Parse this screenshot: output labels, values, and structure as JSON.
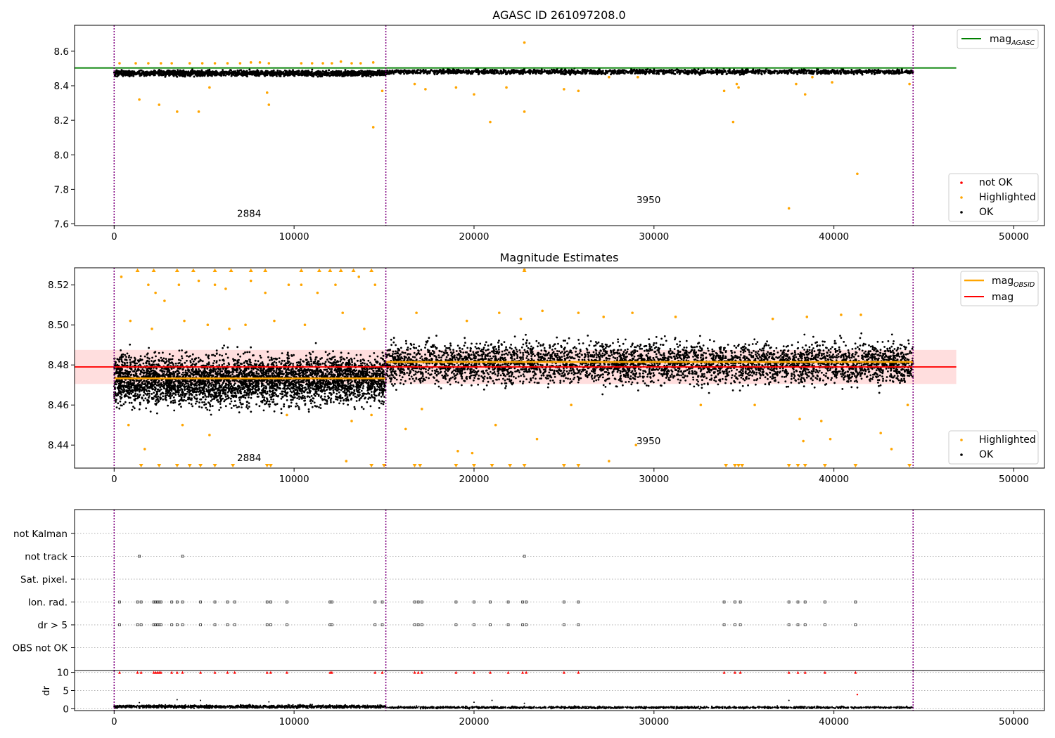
{
  "colors": {
    "ok": "#000000",
    "highlighted": "#ffa500",
    "not_ok": "#ff0000",
    "agasc_line": "#008000",
    "mag_obsid": "#ffa500",
    "mag": "#ff0000",
    "obsid_boundary": "#800080",
    "grid": "#b0b0b0"
  },
  "chart_data": [
    {
      "type": "scatter",
      "title": "AGASC ID 261097208.0",
      "xlim": [
        -2200,
        51700
      ],
      "ylim": [
        7.59,
        8.75
      ],
      "xticks": [
        0,
        10000,
        20000,
        30000,
        40000,
        50000
      ],
      "yticks": [
        7.6,
        7.8,
        8.0,
        8.2,
        8.4,
        8.6
      ],
      "ytick_labels": [
        "7.6",
        "7.8",
        "8.0",
        "8.2",
        "8.4",
        "8.6"
      ],
      "obsid_boundaries": [
        0,
        15100,
        44400
      ],
      "obsid_labels": [
        {
          "text": "2884",
          "x": 7500,
          "y": 7.64
        },
        {
          "text": "3950",
          "x": 29700,
          "y": 7.72
        }
      ],
      "series": [
        {
          "name": "mag",
          "sub": "AGASC",
          "kind": "hline",
          "y": 8.503,
          "x_range": [
            -2200,
            46800
          ],
          "color": "#008000"
        },
        {
          "name": "OK",
          "kind": "band",
          "segments": [
            {
              "x0": 0,
              "x1": 15100,
              "center": 8.472,
              "spread": 0.014
            },
            {
              "x0": 15100,
              "x1": 44400,
              "center": 8.481,
              "spread": 0.012
            }
          ]
        },
        {
          "name": "Highlighted",
          "kind": "points",
          "points": [
            [
              300,
              8.53
            ],
            [
              1200,
              8.53
            ],
            [
              1900,
              8.53
            ],
            [
              2600,
              8.53
            ],
            [
              3200,
              8.53
            ],
            [
              4200,
              8.53
            ],
            [
              4900,
              8.53
            ],
            [
              5600,
              8.53
            ],
            [
              6300,
              8.53
            ],
            [
              7000,
              8.53
            ],
            [
              7600,
              8.535
            ],
            [
              8100,
              8.535
            ],
            [
              8600,
              8.53
            ],
            [
              10400,
              8.53
            ],
            [
              11000,
              8.53
            ],
            [
              11600,
              8.53
            ],
            [
              12100,
              8.53
            ],
            [
              12600,
              8.54
            ],
            [
              13200,
              8.53
            ],
            [
              13700,
              8.53
            ],
            [
              14400,
              8.535
            ],
            [
              1400,
              8.32
            ],
            [
              2500,
              8.29
            ],
            [
              3500,
              8.25
            ],
            [
              4700,
              8.25
            ],
            [
              8600,
              8.29
            ],
            [
              8500,
              8.36
            ],
            [
              5300,
              8.39
            ],
            [
              14400,
              8.16
            ],
            [
              14900,
              8.37
            ],
            [
              22800,
              8.65
            ],
            [
              22800,
              8.25
            ],
            [
              20900,
              8.19
            ],
            [
              20000,
              8.35
            ],
            [
              19000,
              8.39
            ],
            [
              21800,
              8.39
            ],
            [
              25000,
              8.38
            ],
            [
              25800,
              8.37
            ],
            [
              17300,
              8.38
            ],
            [
              16700,
              8.41
            ],
            [
              29100,
              8.45
            ],
            [
              33900,
              8.37
            ],
            [
              34400,
              8.19
            ],
            [
              34700,
              8.39
            ],
            [
              34600,
              8.41
            ],
            [
              37500,
              7.69
            ],
            [
              41300,
              7.89
            ],
            [
              38400,
              8.35
            ],
            [
              37900,
              8.41
            ],
            [
              39900,
              8.42
            ],
            [
              38800,
              8.45
            ],
            [
              44200,
              8.41
            ],
            [
              27500,
              8.45
            ]
          ]
        }
      ],
      "legends": [
        {
          "position": "upper-right",
          "entries": [
            {
              "label": "mag",
              "sub": "AGASC",
              "kind": "line",
              "color": "#008000"
            }
          ]
        },
        {
          "position": "lower-right",
          "entries": [
            {
              "label": "not OK",
              "kind": "marker",
              "color": "#ff0000"
            },
            {
              "label": "Highlighted",
              "kind": "marker",
              "color": "#ffa500"
            },
            {
              "label": "OK",
              "kind": "marker",
              "color": "#000000"
            }
          ]
        }
      ]
    },
    {
      "type": "scatter",
      "title": "Magnitude Estimates",
      "xlim": [
        -2200,
        51700
      ],
      "ylim": [
        8.4285,
        8.5285
      ],
      "xticks": [
        0,
        10000,
        20000,
        30000,
        40000,
        50000
      ],
      "yticks": [
        8.44,
        8.46,
        8.48,
        8.5,
        8.52
      ],
      "ytick_labels": [
        "8.44",
        "8.46",
        "8.48",
        "8.50",
        "8.52"
      ],
      "obsid_boundaries": [
        0,
        15100,
        44400
      ],
      "obsid_labels": [
        {
          "text": "2884",
          "x": 7500,
          "y": 8.432
        },
        {
          "text": "3950",
          "x": 29700,
          "y": 8.4405
        }
      ],
      "mag_band": {
        "center": 8.479,
        "err": 0.0085,
        "x_range": [
          -2200,
          46800
        ]
      },
      "series": [
        {
          "name": "mag",
          "sub": "OBSID",
          "kind": "step",
          "segments": [
            {
              "x0": 0,
              "x1": 15100,
              "y": 8.4733
            },
            {
              "x0": 15100,
              "x1": 44400,
              "y": 8.4815
            }
          ],
          "color": "#ffa500"
        },
        {
          "name": "mag",
          "kind": "hline",
          "y": 8.479,
          "x_range": [
            -2200,
            46800
          ],
          "color": "#ff0000"
        },
        {
          "name": "OK",
          "kind": "band",
          "segments": [
            {
              "x0": 0,
              "x1": 15100,
              "center": 8.4725,
              "spread": 0.011
            },
            {
              "x0": 15100,
              "x1": 44400,
              "center": 8.481,
              "spread": 0.009
            }
          ]
        },
        {
          "name": "Highlighted",
          "kind": "points",
          "points": [
            [
              400,
              8.524
            ],
            [
              1900,
              8.52
            ],
            [
              2300,
              8.516
            ],
            [
              2800,
              8.512
            ],
            [
              3600,
              8.52
            ],
            [
              4700,
              8.522
            ],
            [
              5600,
              8.52
            ],
            [
              6200,
              8.518
            ],
            [
              7600,
              8.522
            ],
            [
              8400,
              8.516
            ],
            [
              9700,
              8.52
            ],
            [
              10400,
              8.52
            ],
            [
              11300,
              8.516
            ],
            [
              12300,
              8.52
            ],
            [
              13600,
              8.524
            ],
            [
              14500,
              8.52
            ],
            [
              900,
              8.502
            ],
            [
              2100,
              8.498
            ],
            [
              3900,
              8.502
            ],
            [
              5200,
              8.5
            ],
            [
              6400,
              8.498
            ],
            [
              7300,
              8.5
            ],
            [
              8900,
              8.502
            ],
            [
              10600,
              8.5
            ],
            [
              12700,
              8.506
            ],
            [
              13900,
              8.498
            ],
            [
              800,
              8.45
            ],
            [
              1700,
              8.438
            ],
            [
              3800,
              8.45
            ],
            [
              5300,
              8.445
            ],
            [
              9600,
              8.455
            ],
            [
              12900,
              8.432
            ],
            [
              13200,
              8.452
            ],
            [
              14300,
              8.455
            ],
            [
              16200,
              8.448
            ],
            [
              17100,
              8.458
            ],
            [
              19100,
              8.437
            ],
            [
              19900,
              8.436
            ],
            [
              21200,
              8.45
            ],
            [
              23500,
              8.443
            ],
            [
              25400,
              8.46
            ],
            [
              27500,
              8.432
            ],
            [
              29000,
              8.44
            ],
            [
              32600,
              8.46
            ],
            [
              35600,
              8.46
            ],
            [
              38100,
              8.453
            ],
            [
              38300,
              8.442
            ],
            [
              39300,
              8.452
            ],
            [
              39800,
              8.443
            ],
            [
              42600,
              8.446
            ],
            [
              43200,
              8.438
            ],
            [
              44100,
              8.46
            ],
            [
              16800,
              8.506
            ],
            [
              19600,
              8.502
            ],
            [
              21400,
              8.506
            ],
            [
              22600,
              8.503
            ],
            [
              23800,
              8.507
            ],
            [
              25800,
              8.506
            ],
            [
              27200,
              8.504
            ],
            [
              28800,
              8.506
            ],
            [
              31200,
              8.504
            ],
            [
              36600,
              8.503
            ],
            [
              38500,
              8.504
            ],
            [
              40400,
              8.505
            ],
            [
              41500,
              8.505
            ],
            [
              22800,
              8.5275
            ]
          ]
        },
        {
          "name": "Highlighted (out of range)",
          "kind": "markers-bottom",
          "x": [
            1500,
            2500,
            3500,
            4200,
            4800,
            5600,
            6600,
            8500,
            8700,
            14300,
            15000,
            16700,
            17000,
            19000,
            20000,
            21000,
            22000,
            22800,
            25000,
            25800,
            34000,
            34500,
            34700,
            34900,
            37500,
            38000,
            38400,
            39500,
            41200,
            44200
          ]
        },
        {
          "name": "Highlighted (above range)",
          "kind": "markers-top",
          "x": [
            1300,
            2200,
            3500,
            4400,
            5600,
            6500,
            7600,
            8400,
            10400,
            11400,
            12000,
            12600,
            13300,
            14300,
            22800
          ]
        }
      ],
      "legends": [
        {
          "position": "upper-right",
          "entries": [
            {
              "label": "mag",
              "sub": "OBSID",
              "kind": "line",
              "color": "#ffa500"
            },
            {
              "label": "mag",
              "kind": "line",
              "color": "#ff0000"
            }
          ]
        },
        {
          "position": "lower-right",
          "entries": [
            {
              "label": "Highlighted",
              "kind": "marker",
              "color": "#ffa500"
            },
            {
              "label": "OK",
              "kind": "marker",
              "color": "#000000"
            }
          ]
        }
      ]
    },
    {
      "type": "scatter",
      "title": "",
      "xlim": [
        -2200,
        51700
      ],
      "categories": [
        "not Kalman",
        "not track",
        "Sat. pixel.",
        "Ion. rad.",
        "dr > 5",
        "OBS not OK"
      ],
      "obsid_boundaries": [
        0,
        15100,
        44400
      ],
      "flag_points": {
        "not track": [
          1400,
          3800,
          22800
        ],
        "Ion. rad.": [
          300,
          1300,
          1500,
          2200,
          2300,
          2400,
          2500,
          2600,
          3200,
          3500,
          3800,
          4800,
          5600,
          6300,
          6700,
          8500,
          8700,
          9600,
          12000,
          12100,
          14500,
          14900,
          16700,
          16900,
          17100,
          19000,
          20000,
          20900,
          21900,
          22700,
          22900,
          25000,
          25800,
          33900,
          34500,
          34800,
          37500,
          38000,
          38400,
          39500,
          41200
        ],
        "dr > 5": [
          300,
          1300,
          1500,
          2200,
          2300,
          2400,
          2500,
          2600,
          3200,
          3500,
          3800,
          4800,
          5600,
          6300,
          6700,
          8500,
          8700,
          9600,
          12000,
          12100,
          14500,
          14900,
          16700,
          16900,
          17100,
          19000,
          20000,
          20900,
          21900,
          22700,
          22900,
          25000,
          25800,
          33900,
          34500,
          34800,
          37500,
          38000,
          38400,
          39500,
          41200
        ]
      }
    },
    {
      "type": "scatter",
      "title": "",
      "ylabel": "dr",
      "xlim": [
        -2200,
        51700
      ],
      "ylim": [
        -0.5,
        10.5
      ],
      "xticks": [
        0,
        10000,
        20000,
        30000,
        40000,
        50000
      ],
      "yticks": [
        0,
        5,
        10
      ],
      "ytick_labels": [
        "0",
        "5",
        "10"
      ],
      "obsid_boundaries": [
        0,
        15100,
        44400
      ],
      "series": [
        {
          "name": "OK",
          "kind": "band",
          "segments": [
            {
              "x0": 0,
              "x1": 15100,
              "center": 0.6,
              "spread": 0.35
            },
            {
              "x0": 15100,
              "x1": 44400,
              "center": 0.35,
              "spread": 0.25
            }
          ]
        },
        {
          "name": "OK (outliers)",
          "kind": "points",
          "points": [
            [
              1400,
              1.7
            ],
            [
              3500,
              2.5
            ],
            [
              4800,
              2.3
            ],
            [
              8600,
              1.9
            ],
            [
              20000,
              1.8
            ],
            [
              21000,
              2.3
            ],
            [
              22800,
              1.5
            ],
            [
              37500,
              2.3
            ]
          ]
        },
        {
          "name": "not OK",
          "kind": "clip-top",
          "x": [
            300,
            1300,
            1500,
            2200,
            2300,
            2400,
            2500,
            2600,
            3200,
            3500,
            3800,
            4800,
            5600,
            6300,
            6700,
            8500,
            8700,
            9600,
            12000,
            12100,
            14500,
            14900,
            16700,
            16900,
            17100,
            19000,
            20000,
            20900,
            21900,
            22700,
            22900,
            25000,
            25800,
            33900,
            34500,
            34800,
            37500,
            38000,
            38400,
            39500,
            41200
          ]
        },
        {
          "name": "not OK (in range)",
          "kind": "points",
          "points": [
            [
              41300,
              3.9
            ]
          ]
        }
      ]
    }
  ]
}
